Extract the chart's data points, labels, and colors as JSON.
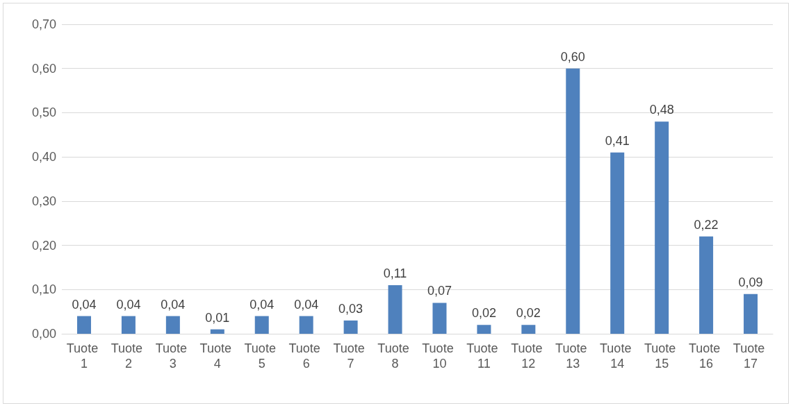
{
  "chart_data": {
    "type": "bar",
    "categories": [
      "Tuote 1",
      "Tuote 2",
      "Tuote 3",
      "Tuote 4",
      "Tuote 5",
      "Tuote 6",
      "Tuote 7",
      "Tuote 8",
      "Tuote 10",
      "Tuote 11",
      "Tuote 12",
      "Tuote 13",
      "Tuote 14",
      "Tuote 15",
      "Tuote 16",
      "Tuote 17"
    ],
    "values": [
      0.04,
      0.04,
      0.04,
      0.01,
      0.04,
      0.04,
      0.03,
      0.11,
      0.07,
      0.02,
      0.02,
      0.6,
      0.41,
      0.48,
      0.22,
      0.09
    ],
    "value_labels": [
      "0,04",
      "0,04",
      "0,04",
      "0,01",
      "0,04",
      "0,04",
      "0,03",
      "0,11",
      "0,07",
      "0,02",
      "0,02",
      "0,60",
      "0,41",
      "0,48",
      "0,22",
      "0,09"
    ],
    "color": "#4f81bd",
    "ylim": [
      0,
      0.7
    ],
    "yticks": [
      {
        "value": 0,
        "label": "0,00"
      },
      {
        "value": 0.1,
        "label": "0,10"
      },
      {
        "value": 0.2,
        "label": "0,20"
      },
      {
        "value": 0.3,
        "label": "0,30"
      },
      {
        "value": 0.4,
        "label": "0,40"
      },
      {
        "value": 0.5,
        "label": "0,50"
      },
      {
        "value": 0.6,
        "label": "0,60"
      },
      {
        "value": 0.7,
        "label": "0,70"
      }
    ],
    "grid": "y"
  }
}
